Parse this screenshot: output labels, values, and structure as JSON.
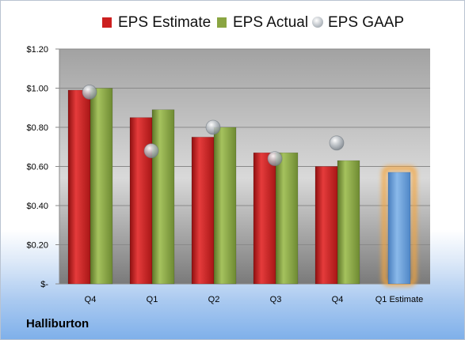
{
  "company": "Halliburton",
  "chart_data": {
    "type": "bar",
    "categories": [
      "Q4",
      "Q1",
      "Q2",
      "Q3",
      "Q4",
      "Q1 Estimate"
    ],
    "series": [
      {
        "name": "EPS Estimate",
        "kind": "bar",
        "color": "#cc1f1f",
        "values": [
          0.99,
          0.85,
          0.75,
          0.67,
          0.6,
          null
        ]
      },
      {
        "name": "EPS Actual",
        "kind": "bar",
        "color": "#8aa542",
        "values": [
          1.0,
          0.89,
          0.8,
          0.67,
          0.63,
          null
        ]
      },
      {
        "name": "EPS GAAP",
        "kind": "marker",
        "color": "#c4c8cc",
        "values": [
          0.98,
          0.68,
          0.8,
          0.64,
          0.72,
          null
        ]
      },
      {
        "name": "Q1 Estimate",
        "kind": "bar",
        "color": "#6a9fd8",
        "highlight": "#f6a53b",
        "values": [
          null,
          null,
          null,
          null,
          null,
          0.57
        ]
      }
    ],
    "legend": [
      "EPS Estimate",
      "EPS Actual",
      "EPS GAAP"
    ],
    "legend_position": "top",
    "y_ticks": [
      "$1.20",
      "$1.00",
      "$0.80",
      "$0.60",
      "$0.40",
      "$0.20",
      "$-"
    ],
    "ylim": [
      0,
      1.2
    ],
    "grid": true
  }
}
